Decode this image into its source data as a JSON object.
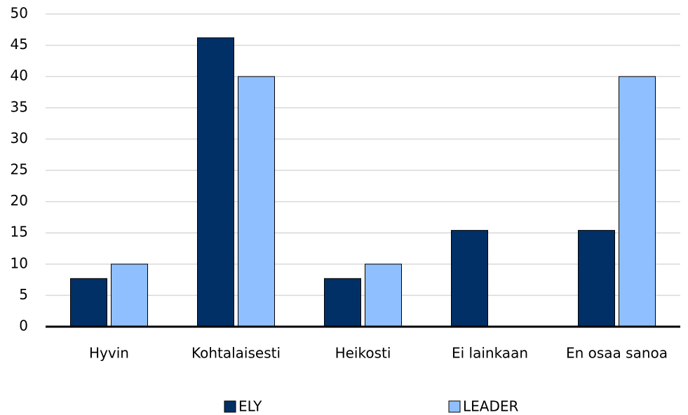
{
  "chart_data": {
    "type": "bar",
    "categories": [
      "Hyvin",
      "Kohtalaisesti",
      "Heikosti",
      "Ei lainkaan",
      "En osaa sanoa"
    ],
    "series": [
      {
        "name": "ELY",
        "color": "#003066",
        "values": [
          7.7,
          46.2,
          7.7,
          15.4,
          15.4
        ]
      },
      {
        "name": "LEADER",
        "color": "#8fbfff",
        "values": [
          10,
          40,
          10,
          0,
          40
        ]
      }
    ],
    "ylim": [
      0,
      50
    ],
    "yticks": [
      0,
      5,
      10,
      15,
      20,
      25,
      30,
      35,
      40,
      45,
      50
    ],
    "grid": true,
    "legend": "bottom"
  }
}
